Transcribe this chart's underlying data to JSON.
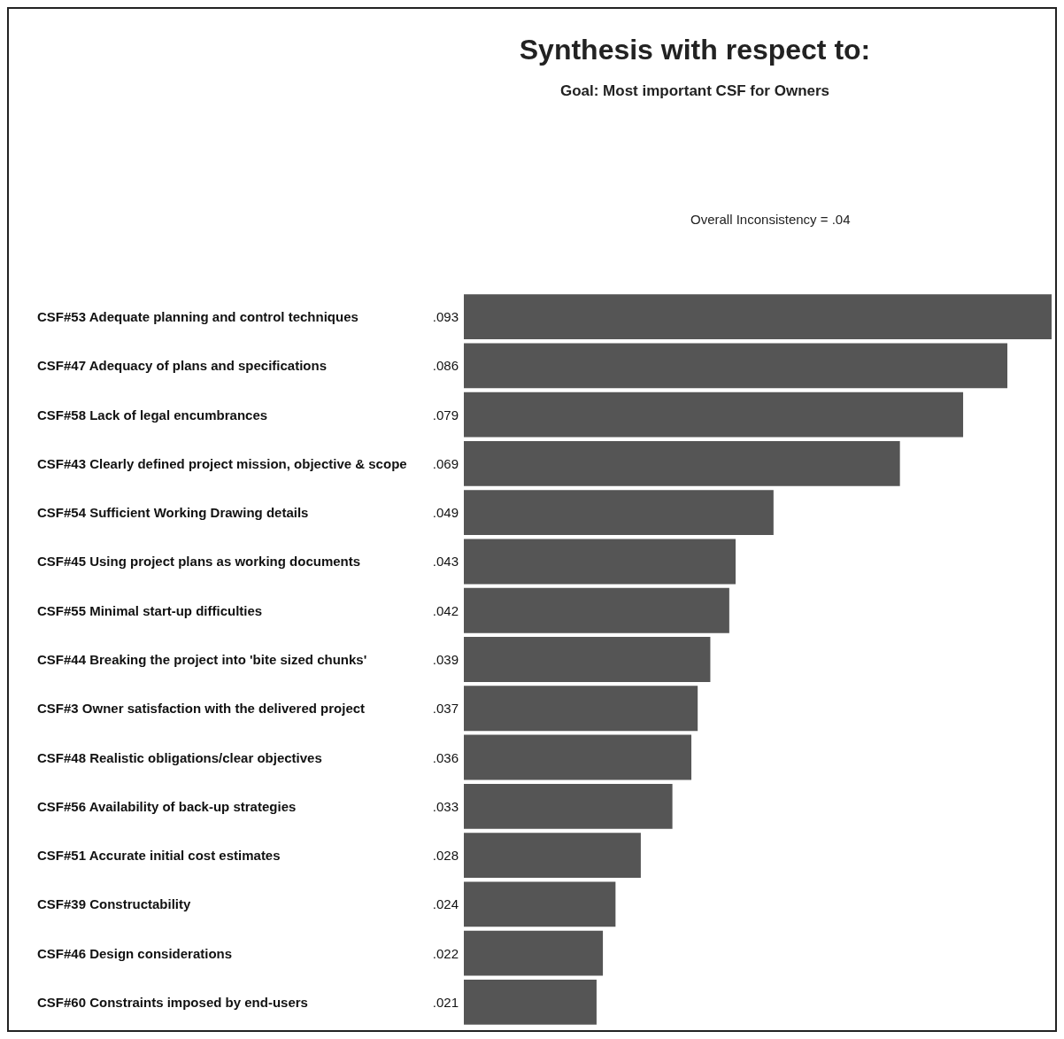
{
  "chart_data": {
    "type": "bar",
    "orientation": "horizontal",
    "title": "Synthesis with respect to:",
    "subtitle": "Goal: Most important CSF for Owners",
    "annotations": [
      "Overall Inconsistency = .04"
    ],
    "categories": [
      "CSF#53 Adequate planning and control techniques",
      "CSF#47 Adequacy of plans and specifications",
      "CSF#58 Lack of legal encumbrances",
      "CSF#43 Clearly defined project mission, objective & scope",
      "CSF#54 Sufficient Working Drawing details",
      "CSF#45 Using project plans as working documents",
      "CSF#55 Minimal start-up difficulties",
      "CSF#44 Breaking the project into 'bite sized chunks'",
      "CSF#3 Owner satisfaction with the delivered project",
      "CSF#48 Realistic obligations/clear objectives",
      "CSF#56 Availability of back-up strategies",
      "CSF#51 Accurate initial cost estimates",
      "CSF#39 Constructability",
      "CSF#46 Design considerations",
      "CSF#60 Constraints imposed by end-users"
    ],
    "values": [
      0.093,
      0.086,
      0.079,
      0.069,
      0.049,
      0.043,
      0.042,
      0.039,
      0.037,
      0.036,
      0.033,
      0.028,
      0.024,
      0.022,
      0.021
    ],
    "value_labels": [
      ".093",
      ".086",
      ".079",
      ".069",
      ".049",
      ".043",
      ".042",
      ".039",
      ".037",
      ".036",
      ".033",
      ".028",
      ".024",
      ".022",
      ".021"
    ],
    "color": "#555555",
    "tick_labels": "y"
  }
}
